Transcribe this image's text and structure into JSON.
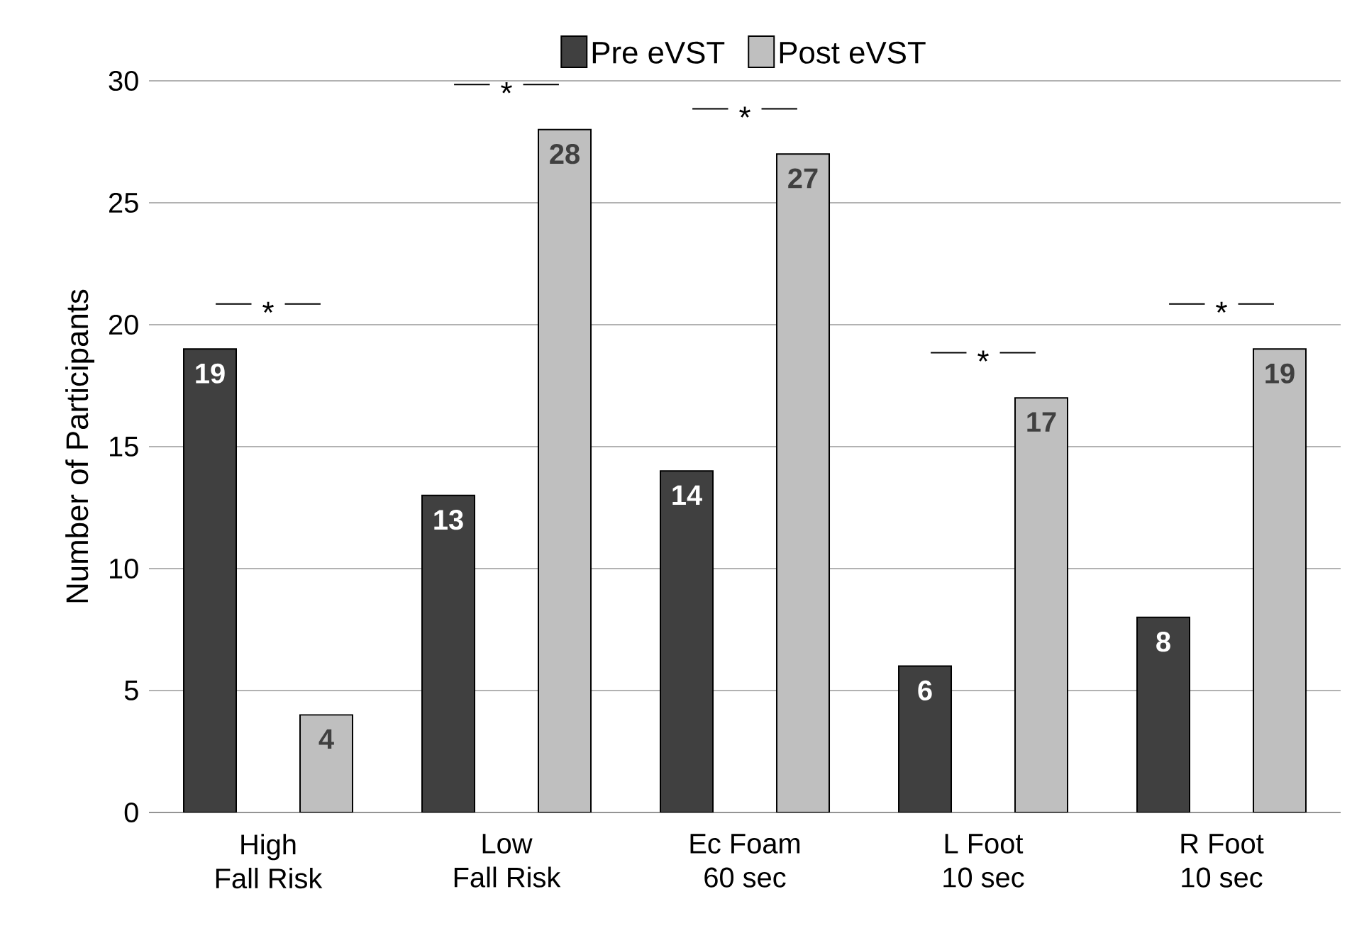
{
  "chart_data": {
    "type": "bar",
    "ylabel": "Number of Participants",
    "categories": [
      "High\nFall Risk",
      "Low\nFall Risk",
      "Ec Foam\n60 sec",
      "L Foot\n10 sec",
      "R Foot\n10 sec"
    ],
    "series": [
      {
        "name": "Pre eVST",
        "color": "#404040",
        "values": [
          19,
          13,
          14,
          6,
          8
        ]
      },
      {
        "name": "Post eVST",
        "color": "#bfbfbf",
        "values": [
          4,
          28,
          27,
          17,
          19
        ]
      }
    ],
    "ylim": [
      0,
      30
    ],
    "yticks": [
      0,
      5,
      10,
      15,
      20,
      25,
      30
    ],
    "grid": "y",
    "legend": "top",
    "data_labels": true,
    "annotations": [
      "*",
      "*",
      "*",
      "*",
      "*"
    ]
  }
}
